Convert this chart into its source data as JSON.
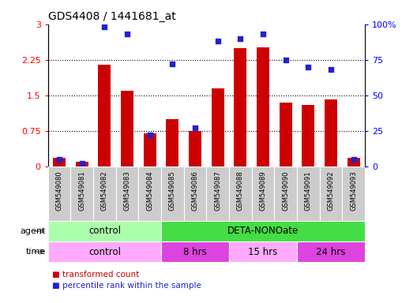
{
  "title": "GDS4408 / 1441681_at",
  "samples": [
    "GSM549080",
    "GSM549081",
    "GSM549082",
    "GSM549083",
    "GSM549084",
    "GSM549085",
    "GSM549086",
    "GSM549087",
    "GSM549088",
    "GSM549089",
    "GSM549090",
    "GSM549091",
    "GSM549092",
    "GSM549093"
  ],
  "transformed_count": [
    0.18,
    0.1,
    2.15,
    1.6,
    0.7,
    1.0,
    0.75,
    1.65,
    2.5,
    2.52,
    1.35,
    1.3,
    1.42,
    0.18
  ],
  "percentile_rank": [
    5,
    2,
    98,
    93,
    22,
    72,
    27,
    88,
    90,
    93,
    75,
    70,
    68,
    5
  ],
  "bar_color": "#cc0000",
  "dot_color": "#2222cc",
  "ylim_left": [
    0,
    3
  ],
  "ylim_right": [
    0,
    100
  ],
  "yticks_left": [
    0,
    0.75,
    1.5,
    2.25,
    3
  ],
  "ytick_labels_left": [
    "0",
    "0.75",
    "1.5",
    "2.25",
    "3"
  ],
  "yticks_right": [
    0,
    25,
    50,
    75,
    100
  ],
  "ytick_labels_right": [
    "0",
    "25",
    "50",
    "75",
    "100%"
  ],
  "agent_row": [
    {
      "label": "control",
      "start": 0,
      "end": 5,
      "color": "#aaffaa"
    },
    {
      "label": "DETA-NONOate",
      "start": 5,
      "end": 14,
      "color": "#44dd44"
    }
  ],
  "time_row": [
    {
      "label": "control",
      "start": 0,
      "end": 5,
      "color": "#ffaaff"
    },
    {
      "label": "8 hrs",
      "start": 5,
      "end": 8,
      "color": "#dd44dd"
    },
    {
      "label": "15 hrs",
      "start": 8,
      "end": 11,
      "color": "#ffaaff"
    },
    {
      "label": "24 hrs",
      "start": 11,
      "end": 14,
      "color": "#dd44dd"
    }
  ],
  "legend_items": [
    {
      "label": "transformed count",
      "color": "#cc0000"
    },
    {
      "label": "percentile rank within the sample",
      "color": "#2222cc"
    }
  ],
  "bar_width": 0.55,
  "xlim": [
    -0.5,
    13.5
  ],
  "tick_bg_color": "#d0d0d0",
  "grid_yticks": [
    0.75,
    1.5,
    2.25
  ]
}
